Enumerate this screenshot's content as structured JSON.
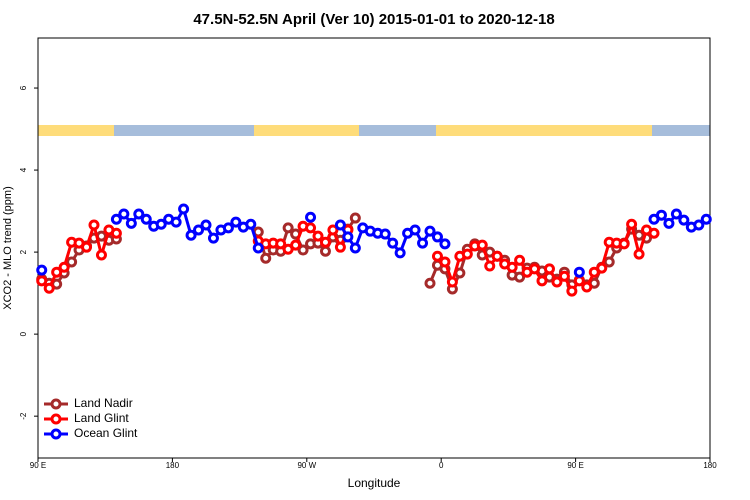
{
  "chart_data": {
    "type": "line",
    "title": "47.5N-52.5N April (Ver 10)   2015-01-01 to 2020-12-18",
    "xlabel": "Longitude",
    "ylabel": "XCO2 - MLO trend (ppm)",
    "x": [
      92.5,
      97.5,
      102.5,
      107.5,
      112.5,
      117.5,
      122.5,
      127.5,
      132.5,
      137.5,
      142.5,
      147.5,
      152.5,
      157.5,
      162.5,
      167.5,
      172.5,
      177.5,
      182.5,
      187.5,
      192.5,
      197.5,
      202.5,
      207.5,
      212.5,
      217.5,
      222.5,
      227.5,
      232.5,
      237.5,
      242.5,
      247.5,
      252.5,
      257.5,
      262.5,
      267.5,
      272.5,
      277.5,
      282.5,
      287.5,
      292.5,
      297.5,
      302.5,
      307.5,
      312.5,
      317.5,
      322.5,
      327.5,
      332.5,
      337.5,
      342.5,
      347.5,
      352.5,
      357.5,
      362.5,
      367.5,
      372.5,
      377.5,
      382.5,
      387.5,
      392.5,
      397.5,
      402.5,
      407.5,
      412.5,
      417.5,
      422.5,
      427.5,
      432.5,
      437.5,
      442.5,
      447.5,
      452.5,
      457.5,
      462.5,
      467.5,
      472.5,
      477.5,
      482.5,
      487.5,
      492.5,
      497.5,
      502.5,
      507.5,
      512.5,
      517.5,
      522.5,
      527.5,
      532.5,
      537.5
    ],
    "series": [
      {
        "name": "Land Nadir",
        "color": "#a52a2a",
        "values": [
          1.34,
          1.24,
          1.22,
          1.49,
          1.76,
          2.05,
          2.15,
          2.34,
          2.39,
          2.29,
          2.32,
          null,
          null,
          null,
          null,
          null,
          null,
          null,
          null,
          null,
          null,
          null,
          null,
          null,
          null,
          null,
          null,
          null,
          null,
          2.49,
          1.85,
          2.05,
          2.02,
          2.59,
          2.44,
          2.05,
          2.2,
          2.22,
          2.02,
          2.37,
          2.29,
          2.56,
          2.83,
          null,
          null,
          null,
          null,
          null,
          null,
          null,
          null,
          null,
          1.24,
          1.68,
          1.59,
          1.1,
          1.49,
          2.07,
          2.2,
          1.93,
          2.0,
          1.9,
          1.8,
          1.44,
          1.39,
          1.61,
          1.63,
          1.54,
          1.39,
          1.34,
          1.51,
          1.2,
          1.32,
          1.2,
          1.24,
          1.63,
          1.76,
          2.1,
          2.22,
          2.56,
          2.41,
          2.34,
          null,
          null,
          null,
          null,
          null,
          null,
          null,
          null
        ]
      },
      {
        "name": "Land Glint",
        "color": "#ff0000",
        "values": [
          1.3,
          1.12,
          1.51,
          1.63,
          2.24,
          2.22,
          2.12,
          2.66,
          1.93,
          2.54,
          2.46,
          null,
          null,
          null,
          null,
          null,
          null,
          null,
          null,
          null,
          null,
          null,
          null,
          null,
          null,
          null,
          null,
          null,
          null,
          2.27,
          2.2,
          2.22,
          2.2,
          2.07,
          2.17,
          2.63,
          2.59,
          2.39,
          2.24,
          2.54,
          2.12,
          2.54,
          null,
          null,
          null,
          null,
          null,
          null,
          null,
          null,
          null,
          null,
          null,
          1.9,
          1.76,
          1.27,
          1.9,
          1.95,
          2.15,
          2.17,
          1.66,
          1.9,
          1.71,
          1.63,
          1.8,
          1.51,
          1.59,
          1.3,
          1.59,
          1.27,
          1.41,
          1.05,
          1.3,
          1.15,
          1.51,
          1.61,
          2.24,
          2.22,
          2.2,
          2.68,
          1.95,
          2.54,
          2.46,
          null,
          null,
          null,
          null,
          null,
          null,
          null
        ]
      },
      {
        "name": "Ocean Glint",
        "color": "#0000ff",
        "values": [
          1.56,
          null,
          null,
          null,
          null,
          null,
          null,
          null,
          null,
          null,
          2.8,
          2.93,
          2.7,
          2.93,
          2.8,
          2.63,
          2.68,
          2.8,
          2.73,
          3.05,
          2.41,
          2.54,
          2.66,
          2.34,
          2.54,
          2.59,
          2.73,
          2.61,
          2.68,
          2.1,
          null,
          null,
          null,
          null,
          null,
          null,
          2.85,
          null,
          null,
          null,
          2.66,
          2.37,
          2.1,
          2.59,
          2.51,
          2.46,
          2.44,
          2.22,
          1.98,
          2.46,
          2.54,
          2.22,
          2.51,
          2.37,
          2.2,
          null,
          null,
          null,
          null,
          null,
          null,
          null,
          null,
          null,
          null,
          null,
          null,
          null,
          null,
          null,
          null,
          null,
          1.51,
          null,
          null,
          null,
          null,
          null,
          null,
          null,
          null,
          null,
          2.8,
          2.9,
          2.7,
          2.93,
          2.78,
          2.61,
          2.66,
          2.8
        ]
      }
    ],
    "xlim": [
      90,
      540
    ],
    "xticks": [
      {
        "value": 90,
        "label": "90 E"
      },
      180,
      {
        "value": 270,
        "label": "90 W"
      },
      {
        "value": 360,
        "label": "0"
      },
      {
        "value": 450,
        "label": "90 E"
      },
      {
        "value": 540,
        "label": "180"
      }
    ],
    "ylim": [
      -3.02,
      7.22
    ],
    "yticks": [
      -2,
      0,
      2,
      4,
      6
    ],
    "legend": "lower left"
  }
}
